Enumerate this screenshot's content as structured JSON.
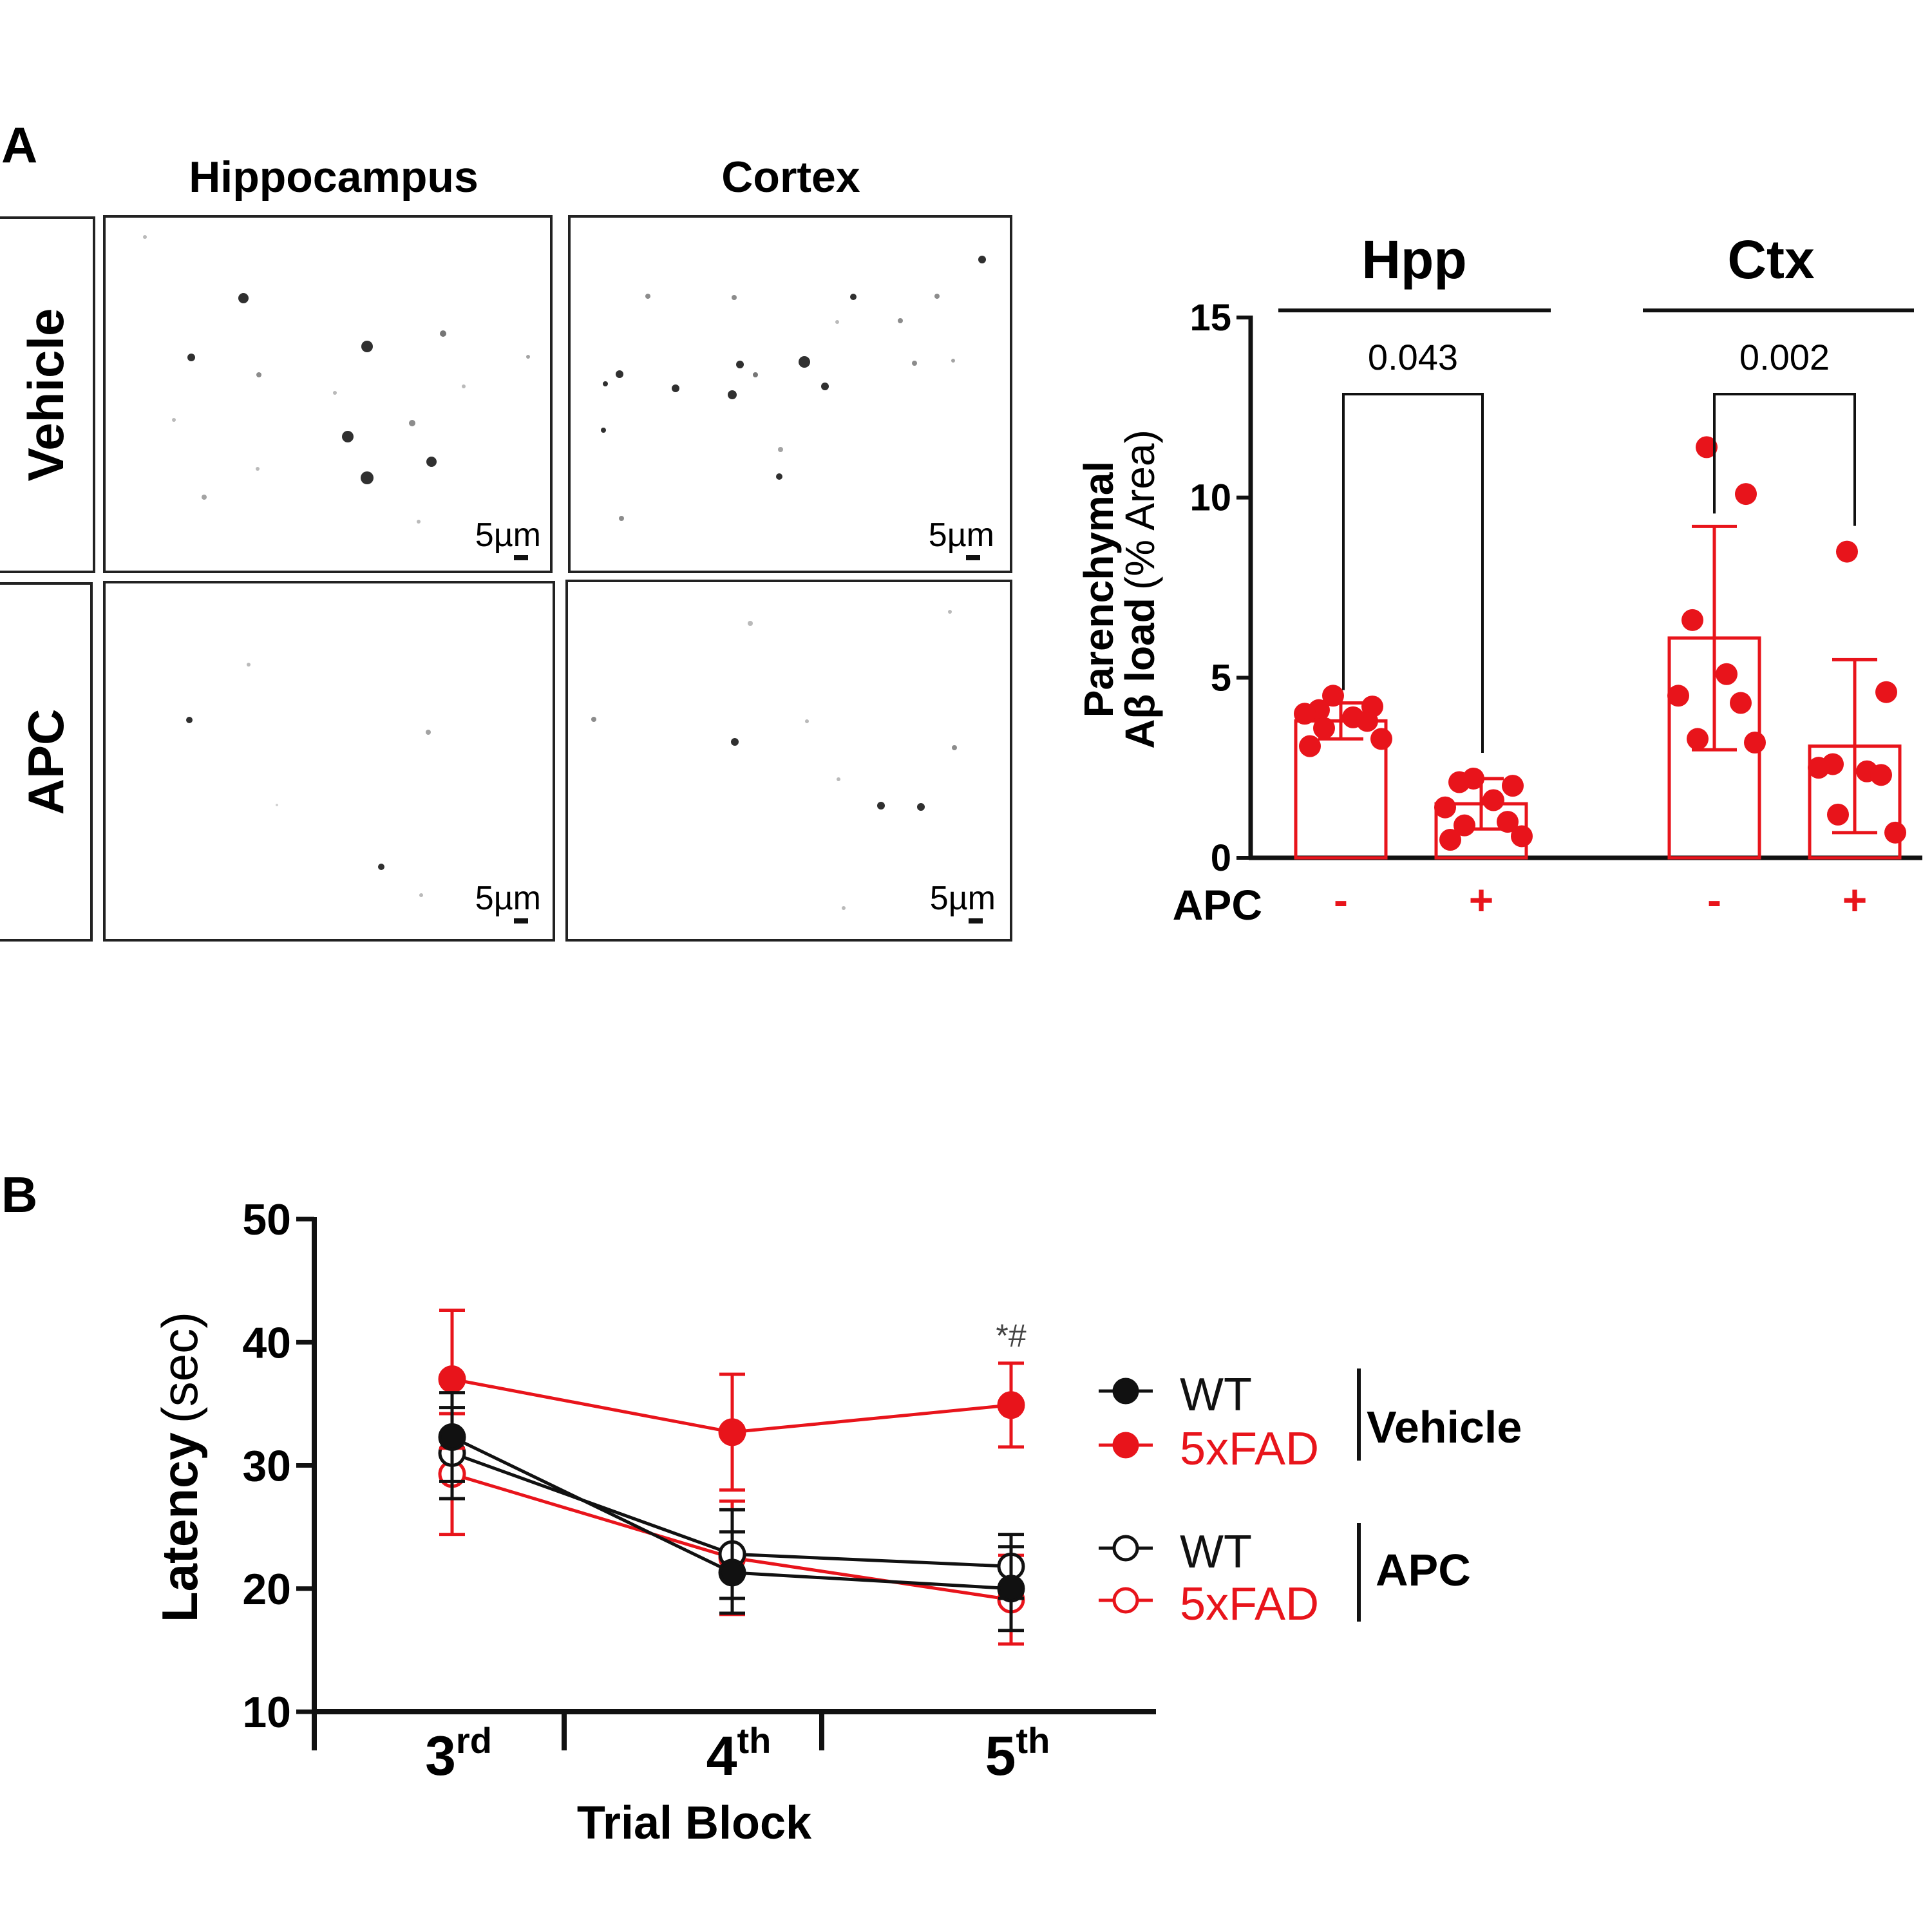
{
  "colors": {
    "red": "#e8141b",
    "black": "#111111"
  },
  "panel_a": {
    "letter": "A",
    "columns": [
      "Hippocampus",
      "Cortex"
    ],
    "rows": [
      "Vehicle",
      "APC"
    ],
    "scale_label": "5µm"
  },
  "panel_b": {
    "letter": "B"
  },
  "chart_data": [
    {
      "type": "bar",
      "groups": [
        "Hpp",
        "Ctx"
      ],
      "ylabel_main": "Parenchymal",
      "ylabel_sub": "Aβ load",
      "ylabel_unit": "(% Area)",
      "ylim": [
        0,
        15
      ],
      "yticks": [
        "0",
        "5",
        "10",
        "15"
      ],
      "x_row_label": "APC",
      "bars": [
        {
          "group": "Hpp",
          "apc": "-",
          "mean": 3.8,
          "sd": 0.5,
          "points": [
            4.5,
            4.2,
            4.1,
            3.9,
            4.0,
            3.8,
            3.6,
            3.3,
            3.1
          ]
        },
        {
          "group": "Hpp",
          "apc": "+",
          "mean": 1.5,
          "sd": 0.7,
          "points": [
            2.2,
            2.0,
            2.1,
            1.6,
            1.4,
            1.0,
            0.9,
            0.6,
            0.5
          ]
        },
        {
          "group": "Ctx",
          "apc": "-",
          "mean": 6.1,
          "sd": 3.1,
          "points": [
            11.4,
            10.1,
            6.6,
            5.1,
            4.5,
            4.3,
            3.3,
            3.2
          ]
        },
        {
          "group": "Ctx",
          "apc": "+",
          "mean": 3.1,
          "sd": 2.4,
          "points": [
            8.5,
            4.6,
            2.6,
            2.4,
            2.5,
            2.3,
            1.2,
            0.7
          ]
        }
      ],
      "significance": [
        {
          "group": "Hpp",
          "p": "0.043"
        },
        {
          "group": "Ctx",
          "p": "0.002"
        }
      ],
      "grid": false
    },
    {
      "type": "line",
      "xlabel": "Trial Block",
      "ylabel_main": "Latency",
      "ylabel_unit": "(sec)",
      "ylim": [
        10,
        50
      ],
      "yticks": [
        "10",
        "20",
        "30",
        "40",
        "50"
      ],
      "categories": [
        {
          "num": "3",
          "sup": "rd"
        },
        {
          "num": "4",
          "sup": "th"
        },
        {
          "num": "5",
          "sup": "th"
        }
      ],
      "series": [
        {
          "name": "WT",
          "group": "Vehicle",
          "color": "#111111",
          "filled": true,
          "values": [
            32.3,
            21.3,
            20.0
          ],
          "errors": [
            3.6,
            3.3,
            3.4
          ]
        },
        {
          "name": "5xFAD",
          "group": "Vehicle",
          "color": "#e8141b",
          "filled": true,
          "values": [
            37.0,
            32.7,
            34.9
          ],
          "errors": [
            5.6,
            4.7,
            3.4
          ]
        },
        {
          "name": "WT",
          "group": "APC",
          "color": "#111111",
          "filled": false,
          "values": [
            31.0,
            22.8,
            21.8
          ],
          "errors": [
            3.7,
            3.6,
            2.6
          ]
        },
        {
          "name": "5xFAD",
          "group": "APC",
          "color": "#e8141b",
          "filled": false,
          "values": [
            29.3,
            22.5,
            19.1
          ],
          "errors": [
            4.9,
            4.6,
            3.6
          ]
        }
      ],
      "annotation": {
        "text": "*#",
        "category_index": 2
      },
      "legend_groups": [
        "Vehicle",
        "APC"
      ],
      "legend_position": "right",
      "grid": false
    }
  ]
}
